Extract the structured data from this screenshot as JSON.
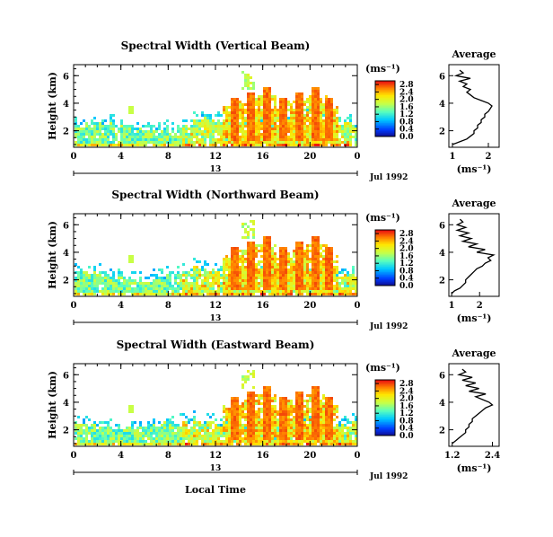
{
  "chart_data": [
    {
      "type": "heatmap",
      "title": "Spectral Width (Vertical Beam)",
      "ylabel": "Height (km)",
      "xlabel": "",
      "x_ticks": [
        "0",
        "4",
        "8",
        "12",
        "16",
        "20",
        "0"
      ],
      "xlim": [
        0,
        24
      ],
      "y_ticks": [
        "2",
        "4",
        "6"
      ],
      "ylim": [
        0.8,
        6.8
      ],
      "date_day": "13",
      "date_label": "Jul 1992",
      "colorbar_unit": "(ms⁻¹)",
      "colorbar_ticks": [
        "0.0",
        "0.4",
        "0.8",
        "1.2",
        "1.6",
        "2.0",
        "2.4",
        "2.8"
      ],
      "colorbar_range": [
        0.0,
        3.0
      ],
      "profile": {
        "title": "Average",
        "xlabel": "(ms⁻¹)",
        "x_ticks": [
          "1",
          "2"
        ],
        "x_tick_values": [
          1,
          2
        ],
        "xlim": [
          0.9,
          2.3
        ],
        "y_ticks": [
          "2",
          "4",
          "6"
        ],
        "ylim": [
          0.8,
          6.8
        ],
        "heights": [
          1.0,
          1.2,
          1.4,
          1.6,
          1.8,
          2.0,
          2.2,
          2.4,
          2.6,
          2.8,
          3.0,
          3.2,
          3.4,
          3.6,
          3.8,
          4.0,
          4.2,
          4.4,
          4.6,
          4.8,
          5.0,
          5.2,
          5.4,
          5.6,
          5.8,
          6.0,
          6.2,
          6.4
        ],
        "values": [
          1.0,
          1.2,
          1.4,
          1.5,
          1.6,
          1.6,
          1.7,
          1.7,
          1.8,
          1.8,
          1.9,
          1.9,
          2.0,
          2.05,
          2.1,
          2.0,
          1.8,
          1.6,
          1.5,
          1.4,
          1.5,
          1.3,
          1.4,
          1.2,
          1.5,
          1.1,
          1.3,
          1.2
        ]
      }
    },
    {
      "type": "heatmap",
      "title": "Spectral Width (Northward Beam)",
      "ylabel": "Height (km)",
      "xlabel": "",
      "x_ticks": [
        "0",
        "4",
        "8",
        "12",
        "16",
        "20",
        "0"
      ],
      "xlim": [
        0,
        24
      ],
      "y_ticks": [
        "2",
        "4",
        "6"
      ],
      "ylim": [
        0.8,
        6.8
      ],
      "date_day": "13",
      "date_label": "Jul 1992",
      "colorbar_unit": "(ms⁻¹)",
      "colorbar_ticks": [
        "0.0",
        "0.4",
        "0.8",
        "1.2",
        "1.6",
        "2.0",
        "2.4",
        "2.8"
      ],
      "colorbar_range": [
        0.0,
        3.0
      ],
      "profile": {
        "title": "Average",
        "xlabel": "(ms⁻¹)",
        "x_ticks": [
          "1",
          "2"
        ],
        "x_tick_values": [
          1,
          2
        ],
        "xlim": [
          0.9,
          2.7
        ],
        "y_ticks": [
          "2",
          "4",
          "6"
        ],
        "ylim": [
          0.8,
          6.8
        ],
        "heights": [
          1.0,
          1.2,
          1.4,
          1.6,
          1.8,
          2.0,
          2.2,
          2.4,
          2.6,
          2.8,
          3.0,
          3.2,
          3.4,
          3.6,
          3.8,
          4.0,
          4.2,
          4.4,
          4.6,
          4.8,
          5.0,
          5.2,
          5.4,
          5.6,
          5.8,
          6.0,
          6.2,
          6.4
        ],
        "values": [
          1.0,
          1.1,
          1.3,
          1.4,
          1.5,
          1.5,
          1.6,
          1.7,
          1.8,
          1.9,
          2.1,
          2.2,
          2.4,
          2.3,
          2.5,
          1.9,
          2.2,
          1.6,
          1.9,
          1.4,
          1.7,
          1.3,
          1.6,
          1.2,
          1.5,
          1.2,
          1.4,
          1.3
        ]
      }
    },
    {
      "type": "heatmap",
      "title": "Spectral Width (Eastward Beam)",
      "ylabel": "Height (km)",
      "xlabel": "Local Time",
      "x_ticks": [
        "0",
        "4",
        "8",
        "12",
        "16",
        "20",
        "0"
      ],
      "xlim": [
        0,
        24
      ],
      "y_ticks": [
        "2",
        "4",
        "6"
      ],
      "ylim": [
        0.8,
        6.8
      ],
      "date_day": "13",
      "date_label": "Jul 1992",
      "colorbar_unit": "(ms⁻¹)",
      "colorbar_ticks": [
        "0.0",
        "0.4",
        "0.8",
        "1.2",
        "1.6",
        "2.0",
        "2.4",
        "2.8"
      ],
      "colorbar_range": [
        0.0,
        3.0
      ],
      "profile": {
        "title": "Average",
        "xlabel": "(ms⁻¹)",
        "x_ticks": [
          "1.2",
          "2.4"
        ],
        "x_tick_values": [
          1.2,
          2.4
        ],
        "xlim": [
          1.1,
          2.6
        ],
        "y_ticks": [
          "2",
          "4",
          "6"
        ],
        "ylim": [
          0.8,
          6.8
        ],
        "heights": [
          1.0,
          1.2,
          1.4,
          1.6,
          1.8,
          2.0,
          2.2,
          2.4,
          2.6,
          2.8,
          3.0,
          3.2,
          3.4,
          3.6,
          3.8,
          4.0,
          4.2,
          4.4,
          4.6,
          4.8,
          5.0,
          5.2,
          5.4,
          5.6,
          5.8,
          6.0,
          6.2,
          6.4
        ],
        "values": [
          1.2,
          1.3,
          1.4,
          1.5,
          1.6,
          1.6,
          1.7,
          1.7,
          1.8,
          1.8,
          1.9,
          2.0,
          2.1,
          2.2,
          2.4,
          2.3,
          2.1,
          1.9,
          2.2,
          1.7,
          2.0,
          1.6,
          1.9,
          1.5,
          1.8,
          1.4,
          1.6,
          1.5
        ]
      }
    }
  ]
}
